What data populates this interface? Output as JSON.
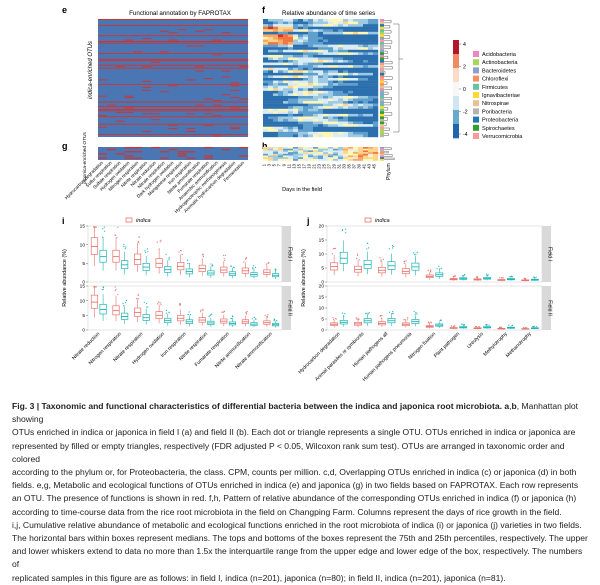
{
  "panel_e": {
    "letter": "e",
    "title": "Functional annotation by FAPROTAX",
    "ylabel": "indica-enriched OTUs",
    "functions": [
      "Hydrocarbon degradation",
      "Sulfur respiration",
      "Sulfate respiration",
      "Hydrogen oxidation",
      "Nitrogen respiration",
      "Nitrite respiration",
      "Nitrate reduction",
      "Nitrate respiration",
      "Dark hydrogen oxidation",
      "Manganese respiration",
      "Iron respiration",
      "Nitrite ammonification",
      "Fumarate respiration",
      "Anaerobic ammonification",
      "Hydrogenotrophic methanogenesis",
      "Aromatic hydrocarbon degradation",
      "Fermentation"
    ],
    "rows": 80
  },
  "panel_g": {
    "letter": "g",
    "ylabel": "japonica-enriched OTUs"
  },
  "panel_f": {
    "letter": "f",
    "title": "Relative abundance of time series",
    "xlabel": "Days in the field",
    "days": [
      "1",
      "3",
      "5",
      "7",
      "9",
      "11",
      "13",
      "15",
      "17",
      "19",
      "21",
      "23",
      "25",
      "27",
      "29",
      "31",
      "33",
      "35",
      "37",
      "39",
      "41",
      "43",
      "45"
    ],
    "phylum_label": "Phylum",
    "colorbar": {
      "ticks": [
        "4",
        "2",
        "0",
        "-2",
        "-4"
      ],
      "colors": [
        "#b2182b",
        "#ef8a62",
        "#fddbc7",
        "#f7f7f7",
        "#d1e5f0",
        "#67a9cf",
        "#2166ac"
      ]
    }
  },
  "panel_h": {
    "letter": "h"
  },
  "phyla": [
    {
      "name": "Acidobacteria",
      "color": "#e78ac3"
    },
    {
      "name": "Actinobacteria",
      "color": "#a6d854"
    },
    {
      "name": "Bacteroidetes",
      "color": "#8da0cb"
    },
    {
      "name": "Chloroflexi",
      "color": "#fc8d62"
    },
    {
      "name": "Firmicutes",
      "color": "#66c2a5"
    },
    {
      "name": "Ignavibacteriae",
      "color": "#ffd92f"
    },
    {
      "name": "Nitrospirae",
      "color": "#e5c494"
    },
    {
      "name": "Poribacteria",
      "color": "#b3b3b3"
    },
    {
      "name": "Proteobacteria",
      "color": "#1f78b4"
    },
    {
      "name": "Spirochaetes",
      "color": "#33a02c"
    },
    {
      "name": "Verrucomicrobia",
      "color": "#fb9a99"
    }
  ],
  "panel_i": {
    "letter": "i",
    "ylabel": "Relative abundance (%)",
    "yticks": [
      "0",
      "5",
      "10",
      "15"
    ],
    "legend": [
      "indica",
      "japonica"
    ],
    "strips": [
      "Field I",
      "Field II"
    ],
    "categories": [
      "Nitrate reduction",
      "Nitrogen respiration",
      "Nitrate respiration",
      "Hydrogen oxidation",
      "Iron respiration",
      "Nitrite respiration",
      "Fumarate respiration",
      "Nitrite ammonification",
      "Nitrate ammonification"
    ],
    "medians_field1": {
      "indica": [
        9.5,
        6.8,
        6.0,
        5.0,
        4.2,
        3.6,
        3.2,
        3.0,
        2.6
      ],
      "japonica": [
        6.8,
        4.6,
        4.0,
        3.3,
        2.8,
        2.4,
        2.2,
        2.0,
        1.8
      ]
    },
    "medians_field2": {
      "indica": [
        9.5,
        6.6,
        6.0,
        5.0,
        4.0,
        3.4,
        3.0,
        2.8,
        2.5
      ],
      "japonica": [
        7.0,
        4.6,
        4.2,
        3.2,
        2.8,
        2.4,
        2.2,
        2.0,
        1.8
      ]
    }
  },
  "panel_j": {
    "letter": "j",
    "ylabel": "Relative abundance (%)",
    "yticks": [
      "0",
      "5",
      "10",
      "15",
      "20"
    ],
    "legend": [
      "indica",
      "japonica"
    ],
    "strips": [
      "Field I",
      "Field II"
    ],
    "categories": [
      "Hydrocarbon degradation",
      "Animal parasites or symbionts",
      "Human pathogens all",
      "Human pathogens pneumonia",
      "Nitrogen fixation",
      "Plant pathogen",
      "Ureolysis",
      "Methylotrophy",
      "Methanotrophy"
    ],
    "medians_field1": {
      "indica": [
        5.5,
        4.5,
        4.2,
        3.8,
        2.0,
        1.0,
        0.9,
        0.7,
        0.6
      ],
      "japonica": [
        8.5,
        6.2,
        5.8,
        5.4,
        2.6,
        1.2,
        1.3,
        1.0,
        0.8
      ]
    },
    "medians_field2": {
      "indica": [
        2.6,
        2.8,
        3.0,
        2.6,
        1.6,
        0.9,
        0.8,
        0.6,
        0.5
      ],
      "japonica": [
        3.5,
        4.2,
        4.2,
        3.8,
        2.2,
        1.2,
        1.2,
        1.0,
        0.8
      ]
    }
  },
  "caption": {
    "title": "Fig. 3 | Taxonomic and functional characteristics of differential bacteria between the indica and japonica root microbiota.",
    "lines": [
      " Manhattan plot showing",
      "OTUs enriched in indica or japonica in field I (a) and field II (b). Each dot or triangle represents a single OTU. OTUs enriched in indica or japonica are",
      "represented by filled or empty triangles, respectively (FDR adjusted P < 0.05, Wilcoxon rank sum test). OTUs are arranged in taxonomic order and colored",
      "according to the phylum or, for Proteobacteria, the class. CPM, counts per million. c,d, Overlapping OTUs enriched in indica (c) or japonica (d) in both",
      "fields. e,g, Metabolic and ecological functions of OTUs enriched in indica (e) and japonica (g) in two fields based on FAPROTAX. Each row represents",
      "an OTU. The presence of functions is shown in red. f,h, Pattern of relative abundance of the corresponding OTUs enriched in indica (f) or japonica (h)",
      "according to time-course data from the rice root microbiota in the field on Changping Farm. Columns represent the days of rice growth in the field.",
      "i,j, Cumulative relative abundance of metabolic and ecological functions enriched in the root microbiota of indica (i) or japonica (j) varieties in two fields.",
      "The horizontal bars within boxes represent medians. The tops and bottoms of the boxes represent the 75th and 25th percentiles, respectively. The upper",
      "and lower whiskers extend to data no more than 1.5x the interquartile range from the upper edge and lower edge of the box, respectively. The numbers of",
      "replicated samples in this figure are as follows: in field I, indica (n=201), japonica (n=80); in field II, indica (n=201), japonica (n=81)."
    ]
  },
  "colors": {
    "indica": "#e8736c",
    "japonica": "#1fb5b5",
    "heat_bg": "#4a77b4",
    "heat_hit": "#d73027",
    "strip": "#d9d9d9"
  }
}
